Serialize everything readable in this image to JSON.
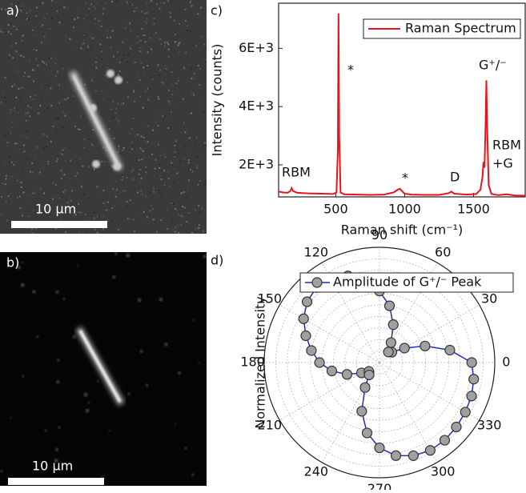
{
  "images": [
    {
      "label": "a)",
      "scale_bar": "10 μm"
    },
    {
      "label": "b)",
      "scale_bar": "10 μm"
    }
  ],
  "chart_data": [
    {
      "type": "line",
      "label": "c)",
      "xlabel": "Raman shift (cm⁻¹)",
      "ylabel": "Intensity (counts)",
      "x": [
        85,
        120,
        150,
        170,
        180,
        190,
        220,
        300,
        400,
        480,
        505,
        515,
        520,
        525,
        535,
        560,
        650,
        750,
        850,
        920,
        950,
        965,
        980,
        1000,
        1050,
        1150,
        1250,
        1320,
        1340,
        1360,
        1450,
        1520,
        1550,
        1565,
        1572,
        1580,
        1588,
        1593,
        1598,
        1610,
        1630,
        1680,
        1740,
        1800,
        1875
      ],
      "series": [
        {
          "name": "Raman Spectrum",
          "color": "#e8141b",
          "values": [
            1080,
            1050,
            1040,
            1100,
            1200,
            1100,
            1040,
            1020,
            1010,
            1000,
            1050,
            2500,
            7200,
            3000,
            1050,
            990,
            980,
            970,
            980,
            1050,
            1150,
            1180,
            1100,
            1010,
            980,
            970,
            970,
            1030,
            1080,
            1010,
            980,
            1000,
            1150,
            1600,
            2100,
            1900,
            3500,
            4900,
            3500,
            1300,
            1000,
            960,
            990,
            950,
            940
          ]
        }
      ],
      "xlim": [
        85,
        1875
      ],
      "xticks": [
        500,
        1000,
        1500
      ],
      "ylim": [
        900,
        7550
      ],
      "yticks": [
        {
          "value": 2000,
          "label": "2E+3"
        },
        {
          "value": 4000,
          "label": "4E+3"
        },
        {
          "value": 6000,
          "label": "6E+3"
        }
      ],
      "annotations": [
        "RBM",
        "*",
        "*",
        "D",
        "G⁺/⁻",
        "RBM",
        "+G"
      ],
      "legend": "upper right"
    },
    {
      "type": "polar",
      "label": "d)",
      "ylabel": "Normalized Intensity",
      "theta": [
        0,
        10,
        20,
        30,
        40,
        50,
        60,
        70,
        80,
        90,
        100,
        110,
        120,
        130,
        140,
        150,
        160,
        170,
        180,
        190,
        200,
        210,
        220,
        230,
        240,
        250,
        260,
        270,
        280,
        290,
        300,
        310,
        320,
        330,
        340,
        350
      ],
      "series": [
        {
          "name": "Amplitude of G⁺/⁻ Peak",
          "color": "#1c2fc4",
          "marker_color": "#a0a0a0",
          "values": [
            0.8,
            0.62,
            0.42,
            0.25,
            0.14,
            0.12,
            0.2,
            0.35,
            0.5,
            0.62,
            0.72,
            0.8,
            0.84,
            0.85,
            0.82,
            0.76,
            0.68,
            0.6,
            0.52,
            0.42,
            0.3,
            0.18,
            0.12,
            0.14,
            0.25,
            0.45,
            0.62,
            0.74,
            0.82,
            0.86,
            0.88,
            0.88,
            0.87,
            0.86,
            0.85,
            0.83
          ]
        }
      ],
      "rlim": [
        0,
        1
      ],
      "rticks": [
        0.1,
        0.2,
        0.3,
        0.4,
        0.5,
        0.6,
        0.7,
        0.8,
        0.9,
        1
      ],
      "thetaticks": [
        0,
        30,
        60,
        90,
        120,
        150,
        180,
        210,
        240,
        270,
        300,
        330
      ],
      "grid": true,
      "legend": "upper left"
    }
  ]
}
